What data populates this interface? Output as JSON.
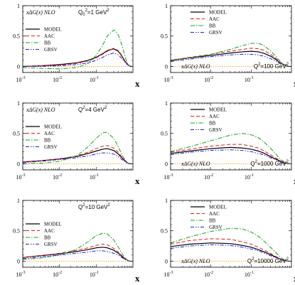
{
  "chart_data": [
    {
      "type": "line",
      "title": "xΔG(x)   NLO",
      "annotation": {
        "main": "Q",
        "sub": "0",
        "sup": "2",
        "rest": "=1 GeV",
        "sup2": "2"
      },
      "xlabel": "x",
      "xscale": "log",
      "xlim": [
        0.001,
        1
      ],
      "ylim": [
        -0.1,
        1.0
      ],
      "yticks": [
        "0",
        "0.5",
        "1"
      ],
      "xticks": [
        {
          "base": "10",
          "exp": "-3"
        },
        {
          "base": "10",
          "exp": "-2"
        },
        {
          "base": "10",
          "exp": "-1"
        }
      ],
      "legend_position": "upper-left",
      "x": [
        0.001,
        0.003,
        0.01,
        0.03,
        0.06,
        0.1,
        0.15,
        0.2,
        0.3,
        0.4,
        0.5,
        0.6,
        0.7,
        0.8,
        0.9
      ],
      "series": [
        {
          "name": "MODEL",
          "values": [
            0.0,
            0.01,
            0.03,
            0.06,
            0.1,
            0.15,
            0.21,
            0.26,
            0.29,
            0.25,
            0.17,
            0.09,
            0.04,
            0.01,
            0.0
          ]
        },
        {
          "name": "AAC",
          "values": [
            0.0,
            0.01,
            0.02,
            0.05,
            0.09,
            0.14,
            0.2,
            0.25,
            0.3,
            0.26,
            0.18,
            0.1,
            0.04,
            0.01,
            0.0
          ]
        },
        {
          "name": "BB",
          "values": [
            -0.02,
            -0.03,
            -0.04,
            -0.02,
            0.05,
            0.18,
            0.35,
            0.5,
            0.6,
            0.52,
            0.35,
            0.18,
            0.06,
            0.01,
            0.0
          ]
        },
        {
          "name": "GRSV",
          "values": [
            0.0,
            0.0,
            0.01,
            0.03,
            0.06,
            0.1,
            0.15,
            0.19,
            0.22,
            0.19,
            0.13,
            0.07,
            0.03,
            0.01,
            0.0
          ]
        }
      ]
    },
    {
      "type": "line",
      "title": "xΔG(x)   NLO",
      "annotation": {
        "main": "Q",
        "sub": "",
        "sup": "2",
        "rest": "=100 GeV",
        "sup2": "2"
      },
      "xlabel": "x",
      "xscale": "log",
      "xlim": [
        0.001,
        1
      ],
      "ylim": [
        -0.1,
        1.0
      ],
      "yticks": [
        "0",
        "0.5",
        "1"
      ],
      "xticks": [
        {
          "base": "10",
          "exp": "-3"
        },
        {
          "base": "10",
          "exp": "-2"
        },
        {
          "base": "10",
          "exp": "-1"
        }
      ],
      "legend_position": "upper-right",
      "x": [
        0.001,
        0.003,
        0.01,
        0.03,
        0.06,
        0.1,
        0.15,
        0.2,
        0.3,
        0.4,
        0.5,
        0.6,
        0.7,
        0.8,
        0.9
      ],
      "series": [
        {
          "name": "MODEL",
          "values": [
            0.1,
            0.14,
            0.18,
            0.22,
            0.24,
            0.25,
            0.24,
            0.22,
            0.17,
            0.12,
            0.07,
            0.04,
            0.02,
            0.0,
            0.0
          ]
        },
        {
          "name": "AAC",
          "values": [
            0.1,
            0.15,
            0.2,
            0.25,
            0.28,
            0.3,
            0.29,
            0.27,
            0.2,
            0.14,
            0.08,
            0.04,
            0.02,
            0.0,
            0.0
          ]
        },
        {
          "name": "BB",
          "values": [
            0.09,
            0.14,
            0.2,
            0.28,
            0.34,
            0.38,
            0.38,
            0.35,
            0.26,
            0.17,
            0.1,
            0.05,
            0.02,
            0.0,
            0.0
          ]
        },
        {
          "name": "GRSV",
          "values": [
            0.08,
            0.12,
            0.16,
            0.19,
            0.2,
            0.2,
            0.19,
            0.17,
            0.13,
            0.09,
            0.05,
            0.03,
            0.01,
            0.0,
            0.0
          ]
        }
      ]
    },
    {
      "type": "line",
      "title": "xΔG(x)   NLO",
      "annotation": {
        "main": "Q",
        "sub": "",
        "sup": "2",
        "rest": "=4 GeV",
        "sup2": "2"
      },
      "xlabel": "x",
      "xscale": "log",
      "xlim": [
        0.001,
        1
      ],
      "ylim": [
        -0.1,
        1.0
      ],
      "yticks": [
        "0",
        "0.5",
        "1"
      ],
      "xticks": [
        {
          "base": "10",
          "exp": "-3"
        },
        {
          "base": "10",
          "exp": "-2"
        },
        {
          "base": "10",
          "exp": "-1"
        }
      ],
      "legend_position": "upper-left",
      "x": [
        0.001,
        0.003,
        0.01,
        0.03,
        0.06,
        0.1,
        0.15,
        0.2,
        0.3,
        0.4,
        0.5,
        0.6,
        0.7,
        0.8,
        0.9
      ],
      "series": [
        {
          "name": "MODEL",
          "values": [
            0.03,
            0.05,
            0.08,
            0.12,
            0.17,
            0.21,
            0.24,
            0.25,
            0.22,
            0.16,
            0.1,
            0.05,
            0.02,
            0.0,
            0.0
          ]
        },
        {
          "name": "AAC",
          "values": [
            0.03,
            0.05,
            0.08,
            0.13,
            0.19,
            0.25,
            0.29,
            0.3,
            0.26,
            0.19,
            0.11,
            0.06,
            0.02,
            0.0,
            0.0
          ]
        },
        {
          "name": "BB",
          "values": [
            0.0,
            0.01,
            0.04,
            0.13,
            0.28,
            0.42,
            0.51,
            0.52,
            0.42,
            0.28,
            0.15,
            0.07,
            0.02,
            0.0,
            0.0
          ]
        },
        {
          "name": "GRSV",
          "values": [
            0.02,
            0.04,
            0.07,
            0.1,
            0.13,
            0.16,
            0.18,
            0.18,
            0.16,
            0.12,
            0.07,
            0.04,
            0.01,
            0.0,
            0.0
          ]
        }
      ]
    },
    {
      "type": "line",
      "title": "xΔG(x)   NLO",
      "annotation": {
        "main": "Q",
        "sub": "",
        "sup": "2",
        "rest": "=1000 GeV",
        "sup2": "2"
      },
      "xlabel": "x",
      "xscale": "log",
      "xlim": [
        0.001,
        1
      ],
      "ylim": [
        -0.1,
        1.0
      ],
      "yticks": [
        "0",
        "0.5",
        "1"
      ],
      "xticks": [
        {
          "base": "10",
          "exp": "-3"
        },
        {
          "base": "10",
          "exp": "-2"
        },
        {
          "base": "10",
          "exp": "-1"
        }
      ],
      "legend_position": "upper-right",
      "x": [
        0.001,
        0.003,
        0.01,
        0.03,
        0.06,
        0.1,
        0.15,
        0.2,
        0.3,
        0.4,
        0.5,
        0.6,
        0.7,
        0.8,
        0.9
      ],
      "series": [
        {
          "name": "MODEL",
          "values": [
            0.17,
            0.21,
            0.25,
            0.27,
            0.26,
            0.24,
            0.21,
            0.18,
            0.12,
            0.08,
            0.05,
            0.02,
            0.01,
            0.0,
            0.0
          ]
        },
        {
          "name": "AAC",
          "values": [
            0.19,
            0.24,
            0.29,
            0.32,
            0.32,
            0.29,
            0.26,
            0.22,
            0.15,
            0.1,
            0.06,
            0.03,
            0.01,
            0.0,
            0.0
          ]
        },
        {
          "name": "BB",
          "values": [
            0.2,
            0.28,
            0.38,
            0.47,
            0.5,
            0.48,
            0.43,
            0.37,
            0.26,
            0.17,
            0.09,
            0.05,
            0.02,
            0.0,
            0.0
          ]
        },
        {
          "name": "GRSV",
          "values": [
            0.15,
            0.19,
            0.22,
            0.23,
            0.22,
            0.2,
            0.17,
            0.15,
            0.1,
            0.07,
            0.04,
            0.02,
            0.01,
            0.0,
            0.0
          ]
        }
      ]
    },
    {
      "type": "line",
      "title": "",
      "annotation": {
        "main": "Q",
        "sub": "",
        "sup": "2",
        "rest": "=10 GeV",
        "sup2": "2"
      },
      "xlabel": "x",
      "xscale": "log",
      "xlim": [
        0.001,
        1
      ],
      "ylim": [
        -0.1,
        1.0
      ],
      "yticks": [
        "0",
        "0.5",
        "1"
      ],
      "xticks": [
        {
          "base": "10",
          "exp": "-3"
        },
        {
          "base": "10",
          "exp": "-2"
        },
        {
          "base": "10",
          "exp": "-1"
        }
      ],
      "legend_position": "upper-left",
      "x": [
        0.001,
        0.003,
        0.01,
        0.03,
        0.06,
        0.1,
        0.15,
        0.2,
        0.3,
        0.4,
        0.5,
        0.6,
        0.7,
        0.8,
        0.9
      ],
      "series": [
        {
          "name": "MODEL",
          "values": [
            0.06,
            0.09,
            0.12,
            0.16,
            0.19,
            0.22,
            0.23,
            0.22,
            0.18,
            0.13,
            0.08,
            0.04,
            0.02,
            0.0,
            0.0
          ]
        },
        {
          "name": "AAC",
          "values": [
            0.06,
            0.09,
            0.13,
            0.18,
            0.22,
            0.26,
            0.28,
            0.27,
            0.21,
            0.15,
            0.09,
            0.05,
            0.02,
            0.0,
            0.0
          ]
        },
        {
          "name": "BB",
          "values": [
            0.03,
            0.05,
            0.1,
            0.2,
            0.32,
            0.42,
            0.46,
            0.45,
            0.35,
            0.23,
            0.13,
            0.06,
            0.02,
            0.0,
            0.0
          ]
        },
        {
          "name": "GRSV",
          "values": [
            0.04,
            0.07,
            0.1,
            0.13,
            0.15,
            0.17,
            0.17,
            0.16,
            0.13,
            0.1,
            0.06,
            0.03,
            0.01,
            0.0,
            0.0
          ]
        }
      ]
    },
    {
      "type": "line",
      "title": "xΔG(x)   NLO",
      "annotation": {
        "main": "Q",
        "sub": "",
        "sup": "2",
        "rest": "=10000 GeV",
        "sup2": "2"
      },
      "xlabel": "x",
      "xscale": "log",
      "xlim": [
        0.001,
        1
      ],
      "ylim": [
        -0.1,
        1.0
      ],
      "yticks": [
        "0",
        "0.5",
        "1"
      ],
      "xticks": [
        {
          "base": "10",
          "exp": "-3"
        },
        {
          "base": "10",
          "exp": "-2"
        },
        {
          "base": "10",
          "exp": "-1"
        }
      ],
      "legend_position": "upper-right",
      "x": [
        0.001,
        0.003,
        0.01,
        0.03,
        0.06,
        0.1,
        0.15,
        0.2,
        0.3,
        0.4,
        0.5,
        0.6,
        0.7,
        0.8,
        0.9
      ],
      "series": [
        {
          "name": "MODEL",
          "values": [
            0.24,
            0.28,
            0.3,
            0.29,
            0.26,
            0.23,
            0.19,
            0.16,
            0.11,
            0.07,
            0.04,
            0.02,
            0.01,
            0.0,
            0.0
          ]
        },
        {
          "name": "AAC",
          "values": [
            0.28,
            0.34,
            0.37,
            0.36,
            0.32,
            0.28,
            0.23,
            0.19,
            0.13,
            0.08,
            0.05,
            0.02,
            0.01,
            0.0,
            0.0
          ]
        },
        {
          "name": "BB",
          "values": [
            0.3,
            0.4,
            0.49,
            0.54,
            0.53,
            0.48,
            0.41,
            0.34,
            0.23,
            0.15,
            0.08,
            0.04,
            0.01,
            0.0,
            0.0
          ]
        },
        {
          "name": "GRSV",
          "values": [
            0.21,
            0.25,
            0.27,
            0.26,
            0.23,
            0.2,
            0.17,
            0.14,
            0.09,
            0.06,
            0.04,
            0.02,
            0.01,
            0.0,
            0.0
          ]
        }
      ]
    }
  ],
  "styles": {
    "MODEL": {
      "color": "#000000",
      "dash": ""
    },
    "AAC": {
      "color": "#e8141a",
      "dash": "5,3"
    },
    "BB": {
      "color": "#17a017",
      "dash": "6,2,1.5,2"
    },
    "GRSV": {
      "color": "#1a1ae8",
      "dash": "5,2,1.5,2,1.5,2"
    },
    "zero_line": "#f0a020"
  }
}
